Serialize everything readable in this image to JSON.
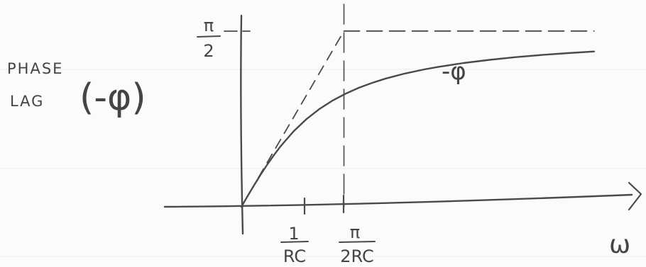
{
  "chart_data": {
    "type": "line",
    "ylabel": [
      "PHASE",
      "LAG",
      "(-φ)"
    ],
    "xlabel": "ω",
    "xlim": [
      0,
      5.4
    ],
    "ylim": [
      0,
      1.5708
    ],
    "x_ticks": [
      {
        "value": 1.0,
        "numerator": "1",
        "denominator": "RC"
      },
      {
        "value": 1.5708,
        "numerator": "π",
        "denominator": "2RC"
      }
    ],
    "y_ticks": [
      {
        "value": 1.5708,
        "numerator": "π",
        "denominator": "2"
      }
    ],
    "series": [
      {
        "name": "-φ",
        "style": "solid",
        "x": [
          0,
          0.1,
          0.2,
          0.3,
          0.4,
          0.5,
          0.6,
          0.8,
          1.0,
          1.2,
          1.4,
          1.6,
          1.8,
          2.0,
          2.2,
          2.5,
          2.8,
          3.0,
          3.4,
          3.8,
          4.2,
          4.6,
          5.0,
          5.4
        ],
        "y": [
          0,
          0.0997,
          0.1974,
          0.2915,
          0.3805,
          0.4636,
          0.5404,
          0.6747,
          0.7854,
          0.8761,
          0.9505,
          1.0122,
          1.0637,
          1.1071,
          1.1442,
          1.1903,
          1.2278,
          1.249,
          1.2847,
          1.3134,
          1.3371,
          1.3569,
          1.3734,
          1.388
        ]
      },
      {
        "name": "tangent",
        "style": "dashed",
        "x": [
          0,
          1.5708
        ],
        "y": [
          0,
          1.5708
        ]
      }
    ],
    "reference_lines": [
      {
        "axis": "y",
        "value": 1.5708,
        "style": "dashed"
      },
      {
        "axis": "x",
        "value": 1.5708,
        "style": "dashed"
      }
    ],
    "curve_label": "-φ"
  },
  "colors": {
    "ink": "#4a4a4a",
    "paper": "#fbfbfa"
  }
}
